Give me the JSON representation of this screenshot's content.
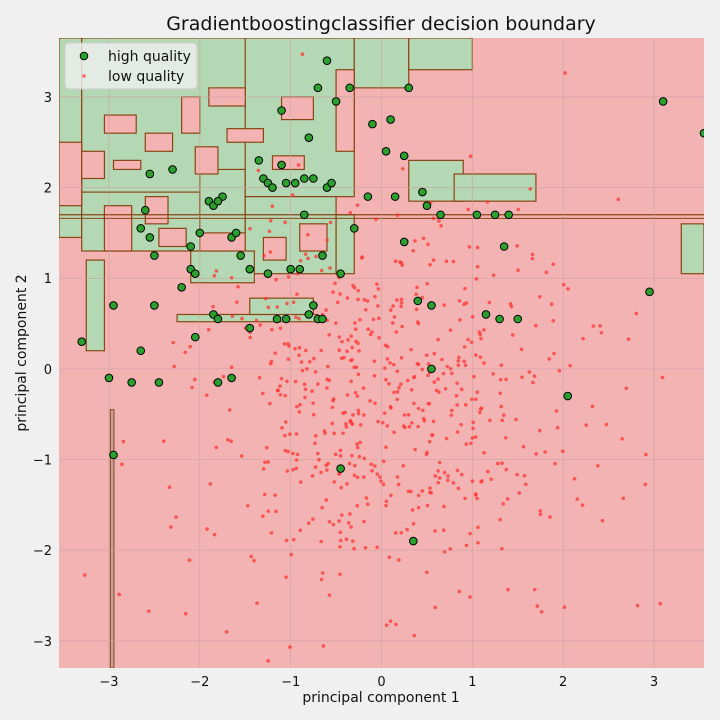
{
  "chart_data": {
    "type": "scatter",
    "title": "Gradientboostingclassifier decision boundary",
    "xlabel": "principal component 1",
    "ylabel": "principal component 2",
    "xlim": [
      -3.55,
      3.55
    ],
    "ylim": [
      -3.3,
      3.65
    ],
    "xticks": [
      -3,
      -2,
      -1,
      0,
      1,
      2,
      3
    ],
    "yticks": [
      -3,
      -2,
      -1,
      0,
      1,
      2,
      3
    ],
    "grid": true,
    "legend": "top-left",
    "background_regions": {
      "high_quality_color": "#b4d7b4",
      "low_quality_color": "#f4b3b3",
      "boundary_color": "#8b4513",
      "high_quality_rects": [
        [
          -3.55,
          1.45,
          -3.3,
          3.65
        ],
        [
          -3.3,
          1.95,
          -1.2,
          3.65
        ],
        [
          -3.3,
          1.3,
          -2.0,
          1.95
        ],
        [
          -2.0,
          1.5,
          -1.5,
          2.2
        ],
        [
          -1.5,
          1.9,
          -0.3,
          3.65
        ],
        [
          -1.5,
          1.05,
          -0.5,
          1.9
        ],
        [
          -0.5,
          1.05,
          -0.3,
          1.7
        ],
        [
          -2.1,
          0.95,
          -1.4,
          1.3
        ],
        [
          -2.25,
          0.52,
          -0.7,
          0.6
        ],
        [
          -1.45,
          0.6,
          -0.75,
          0.78
        ],
        [
          -3.25,
          0.2,
          -3.05,
          1.2
        ],
        [
          -0.3,
          3.1,
          0.3,
          3.65
        ],
        [
          0.3,
          3.3,
          1.0,
          3.65
        ],
        [
          0.3,
          1.85,
          0.9,
          2.3
        ],
        [
          0.8,
          1.85,
          1.7,
          2.15
        ],
        [
          3.3,
          1.05,
          3.55,
          1.6
        ]
      ],
      "low_quality_rects": [
        [
          -3.55,
          1.8,
          -3.3,
          2.5
        ],
        [
          -3.3,
          2.1,
          -3.05,
          2.4
        ],
        [
          -3.05,
          2.6,
          -2.7,
          2.8
        ],
        [
          -2.95,
          2.2,
          -2.65,
          2.3
        ],
        [
          -2.6,
          2.4,
          -2.3,
          2.6
        ],
        [
          -2.2,
          2.6,
          -2.0,
          3.0
        ],
        [
          -2.05,
          2.15,
          -1.8,
          2.45
        ],
        [
          -1.7,
          2.5,
          -1.3,
          2.65
        ],
        [
          -1.9,
          2.9,
          -1.5,
          3.1
        ],
        [
          -1.1,
          2.75,
          -0.75,
          3.0
        ],
        [
          -1.2,
          2.2,
          -0.85,
          2.35
        ],
        [
          -0.5,
          2.4,
          -0.3,
          3.3
        ],
        [
          -3.05,
          1.3,
          -2.75,
          1.8
        ],
        [
          -2.6,
          1.6,
          -2.35,
          1.9
        ],
        [
          -2.45,
          1.35,
          -2.15,
          1.55
        ],
        [
          -1.3,
          1.2,
          -1.05,
          1.45
        ],
        [
          -0.9,
          1.3,
          -0.6,
          1.6
        ]
      ]
    },
    "series": [
      {
        "name": "high quality",
        "color": "#2ca02c",
        "edgecolor": "#000000",
        "x": [
          -2.95,
          -3.3,
          -3.0,
          -2.95,
          -2.75,
          -2.65,
          -2.5,
          -2.6,
          -2.55,
          -2.5,
          -2.45,
          -2.55,
          -2.65,
          -2.3,
          -2.2,
          -2.1,
          -2.1,
          -2.05,
          -2.05,
          -2.0,
          -1.9,
          -1.85,
          -1.8,
          -1.8,
          -1.75,
          -1.65,
          -1.6,
          -1.55,
          -1.45,
          -1.45,
          -1.35,
          -1.3,
          -1.25,
          -1.2,
          -1.1,
          -1.1,
          -1.05,
          -0.95,
          -0.9,
          -0.85,
          -0.8,
          -0.75,
          -0.7,
          -0.65,
          -0.6,
          -0.55,
          -0.5,
          -0.45,
          -0.35,
          -0.3,
          -0.15,
          -0.1,
          0.05,
          0.1,
          0.15,
          0.25,
          0.3,
          0.45,
          0.5,
          0.55,
          0.65,
          1.05,
          1.15,
          1.25,
          1.35,
          1.4,
          1.5,
          2.05,
          2.95,
          3.1,
          3.55,
          0.35,
          -0.7,
          -0.65,
          0.4,
          0.55,
          -0.85,
          -0.75,
          -1.0,
          -1.65,
          -1.85,
          -1.8,
          -1.25,
          -1.15,
          -1.05,
          -0.8,
          -0.6,
          1.3,
          0.25,
          -0.45
        ],
        "y": [
          -0.95,
          0.3,
          -0.1,
          0.7,
          -0.15,
          0.2,
          0.7,
          1.75,
          2.15,
          1.25,
          -0.15,
          1.45,
          1.55,
          2.2,
          0.9,
          1.1,
          1.35,
          1.05,
          0.35,
          1.5,
          1.85,
          0.6,
          0.55,
          -0.15,
          1.9,
          1.45,
          1.5,
          1.25,
          0.45,
          1.1,
          2.3,
          2.1,
          2.05,
          2.0,
          2.85,
          2.25,
          2.05,
          2.05,
          1.1,
          2.1,
          2.55,
          2.1,
          3.1,
          1.25,
          2.0,
          2.05,
          2.95,
          1.05,
          3.1,
          1.55,
          1.9,
          2.7,
          2.4,
          2.75,
          1.9,
          2.35,
          3.1,
          1.95,
          1.8,
          0.7,
          1.7,
          1.7,
          0.6,
          1.7,
          1.35,
          1.7,
          0.55,
          -0.3,
          0.85,
          2.95,
          2.6,
          -1.9,
          0.55,
          0.55,
          0.75,
          0.0,
          1.7,
          0.7,
          1.1,
          -0.1,
          1.8,
          1.85,
          1.05,
          0.55,
          0.55,
          0.6,
          3.4,
          0.55,
          1.4,
          -1.1
        ],
        "size": 5.5
      },
      {
        "name": "low quality",
        "color": "#ff3333",
        "seed": 7,
        "count": 620,
        "distribution": "gaussian, center x 0.1 y -0.35, sd x 1.15 y 1.1",
        "size": 1.8
      }
    ]
  }
}
